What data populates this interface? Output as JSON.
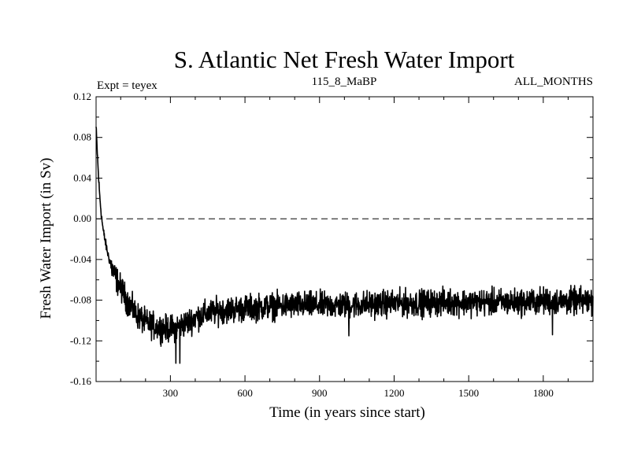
{
  "chart_data": {
    "type": "line",
    "title": "S. Atlantic Net Fresh Water Import",
    "subtitle_left": "Expt = teyex",
    "subtitle_center": "115_8_MaBP",
    "subtitle_right": "ALL_MONTHS",
    "xlabel": "Time (in years since start)",
    "ylabel": "Fresh Water Import (in Sv)",
    "xlim": [
      1,
      2000
    ],
    "ylim": [
      -0.16,
      0.12
    ],
    "xticks": [
      300,
      600,
      900,
      1200,
      1500,
      1800
    ],
    "yticks": [
      0.12,
      0.08,
      0.04,
      0.0,
      -0.04,
      -0.08,
      -0.12,
      -0.16
    ],
    "ytick_labels": [
      "0.12",
      "0.08",
      "0.04",
      "0.00",
      "-0.04",
      "-0.08",
      "-0.12",
      "-0.16"
    ],
    "reference_line": {
      "y": 0.0,
      "style": "dashed"
    },
    "series": [
      {
        "name": "Net Fresh Water Import",
        "x": [
          1,
          5,
          10,
          15,
          20,
          25,
          30,
          40,
          50,
          60,
          70,
          80,
          90,
          100,
          110,
          120,
          140,
          160,
          180,
          200,
          220,
          240,
          260,
          280,
          300,
          320,
          340,
          360,
          380,
          400,
          450,
          500,
          600,
          700,
          800,
          900,
          1000,
          1100,
          1200,
          1300,
          1400,
          1500,
          1600,
          1700,
          1800,
          1900,
          2000
        ],
        "values": [
          0.09,
          0.07,
          0.045,
          0.025,
          0.01,
          -0.002,
          -0.012,
          -0.025,
          -0.036,
          -0.045,
          -0.052,
          -0.058,
          -0.063,
          -0.068,
          -0.072,
          -0.078,
          -0.086,
          -0.093,
          -0.098,
          -0.102,
          -0.104,
          -0.106,
          -0.107,
          -0.108,
          -0.108,
          -0.107,
          -0.105,
          -0.103,
          -0.1,
          -0.097,
          -0.093,
          -0.09,
          -0.088,
          -0.086,
          -0.085,
          -0.085,
          -0.085,
          -0.084,
          -0.083,
          -0.083,
          -0.082,
          -0.082,
          -0.082,
          -0.082,
          -0.081,
          -0.081,
          -0.081
        ],
        "noise_amplitude": 0.008,
        "min_dips": [
          {
            "x": 322,
            "y": -0.142
          },
          {
            "x": 338,
            "y": -0.142
          },
          {
            "x": 1018,
            "y": -0.115
          },
          {
            "x": 1837,
            "y": -0.114
          }
        ]
      }
    ]
  }
}
